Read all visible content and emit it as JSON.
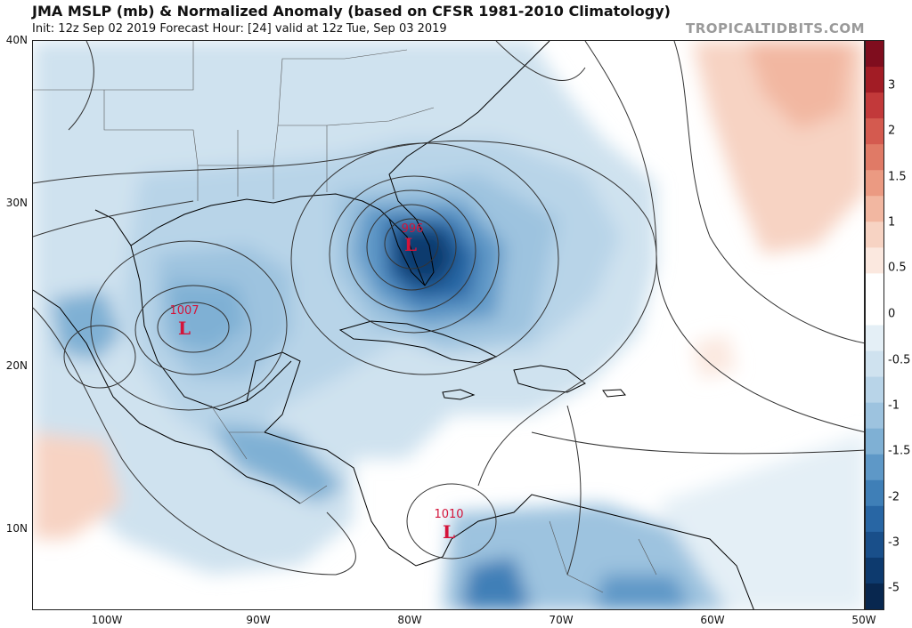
{
  "header": {
    "title": "JMA MSLP (mb) & Normalized Anomaly (based on CFSR 1981-2010 Climatology)",
    "subtitle": "Init: 12z Sep 02 2019   Forecast Hour: [24]   valid at 12z Tue, Sep 03 2019",
    "brand": "TROPICALTIDBITS.COM"
  },
  "axes": {
    "lat_labels": [
      "40N",
      "30N",
      "20N",
      "10N"
    ],
    "lon_labels": [
      "100W",
      "90W",
      "80W",
      "70W",
      "60W",
      "50W"
    ]
  },
  "lows": [
    {
      "label": "996",
      "symbol": "L"
    },
    {
      "label": "1007",
      "symbol": "L"
    },
    {
      "label": "1010",
      "symbol": "L"
    }
  ],
  "colorbar": {
    "labels": [
      "3",
      "2",
      "1.5",
      "1",
      "0.5",
      "0",
      "-0.5",
      "-1",
      "-1.5",
      "-2",
      "-3",
      "-5"
    ],
    "colors": [
      "#7f0d1e",
      "#a21c25",
      "#c2393a",
      "#d45a4f",
      "#e07a66",
      "#eb9a82",
      "#f2b7a1",
      "#f7d3c3",
      "#fbe8df",
      "#ffffff",
      "#ffffff",
      "#e4eff6",
      "#cfe2ef",
      "#b8d4e8",
      "#9dc3df",
      "#7fb0d4",
      "#5e98c7",
      "#3f7fb7",
      "#2866a4",
      "#194f8a",
      "#0d3a6e",
      "#08274f"
    ]
  },
  "colors": {
    "low_label": "#d4143a",
    "contour": "#333333",
    "coast": "#000000",
    "border": "#444444"
  }
}
